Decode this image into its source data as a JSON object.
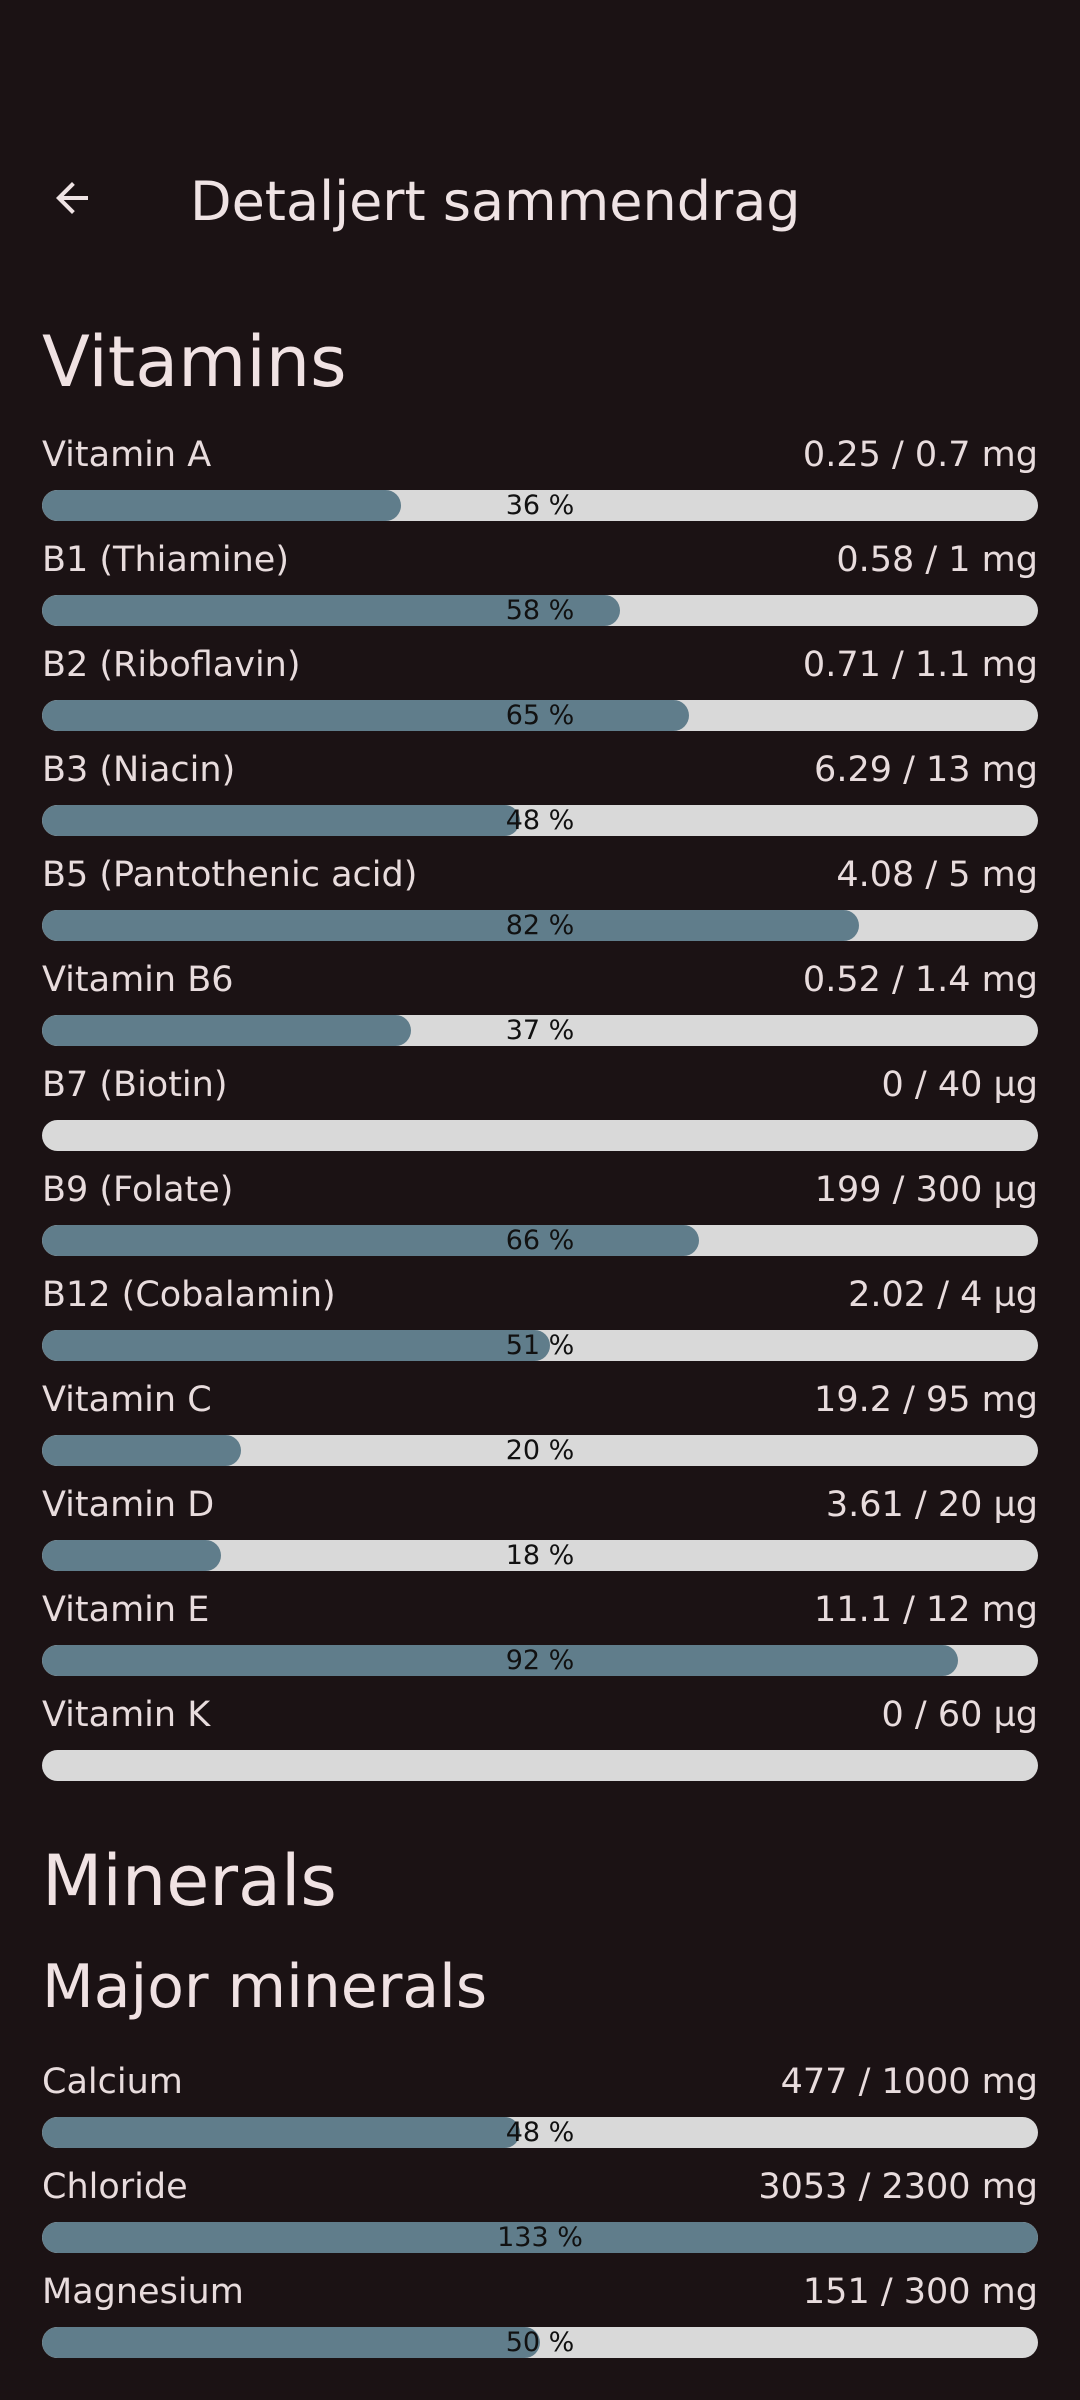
{
  "header": {
    "title": "Detaljert sammendrag",
    "back_icon": "arrow-back-icon"
  },
  "colors": {
    "background": "#1b1214",
    "bar_fill": "#607d8b",
    "bar_track": "#d9d9d9"
  },
  "vitamins": {
    "title": "Vitamins",
    "items": [
      {
        "name": "Vitamin A",
        "amount": "0.25 / 0.7 mg",
        "pct_label": "36 %",
        "progress": 36
      },
      {
        "name": "B1 (Thiamine)",
        "amount": "0.58 / 1 mg",
        "pct_label": "58 %",
        "progress": 58
      },
      {
        "name": "B2 (Riboflavin)",
        "amount": "0.71 / 1.1 mg",
        "pct_label": "65 %",
        "progress": 65
      },
      {
        "name": "B3 (Niacin)",
        "amount": "6.29 / 13 mg",
        "pct_label": "48 %",
        "progress": 48
      },
      {
        "name": "B5 (Pantothenic acid)",
        "amount": "4.08 / 5 mg",
        "pct_label": "82 %",
        "progress": 82
      },
      {
        "name": "Vitamin B6",
        "amount": "0.52 / 1.4 mg",
        "pct_label": "37 %",
        "progress": 37
      },
      {
        "name": "B7 (Biotin)",
        "amount": "0 / 40 µg",
        "pct_label": "",
        "progress": 0
      },
      {
        "name": "B9 (Folate)",
        "amount": "199 / 300 µg",
        "pct_label": "66 %",
        "progress": 66
      },
      {
        "name": "B12 (Cobalamin)",
        "amount": "2.02 / 4 µg",
        "pct_label": "51 %",
        "progress": 51
      },
      {
        "name": "Vitamin C",
        "amount": "19.2 / 95 mg",
        "pct_label": "20 %",
        "progress": 20
      },
      {
        "name": "Vitamin D",
        "amount": "3.61 / 20 µg",
        "pct_label": "18 %",
        "progress": 18
      },
      {
        "name": "Vitamin E",
        "amount": "11.1 / 12 mg",
        "pct_label": "92 %",
        "progress": 92
      },
      {
        "name": "Vitamin K",
        "amount": "0 / 60 µg",
        "pct_label": "",
        "progress": 0
      }
    ]
  },
  "minerals": {
    "title": "Minerals",
    "major_title": "Major minerals",
    "items": [
      {
        "name": "Calcium",
        "amount": "477 / 1000 mg",
        "pct_label": "48 %",
        "progress": 48
      },
      {
        "name": "Chloride",
        "amount": "3053 / 2300 mg",
        "pct_label": "133 %",
        "progress": 133
      },
      {
        "name": "Magnesium",
        "amount": "151 / 300 mg",
        "pct_label": "50 %",
        "progress": 50
      }
    ]
  }
}
